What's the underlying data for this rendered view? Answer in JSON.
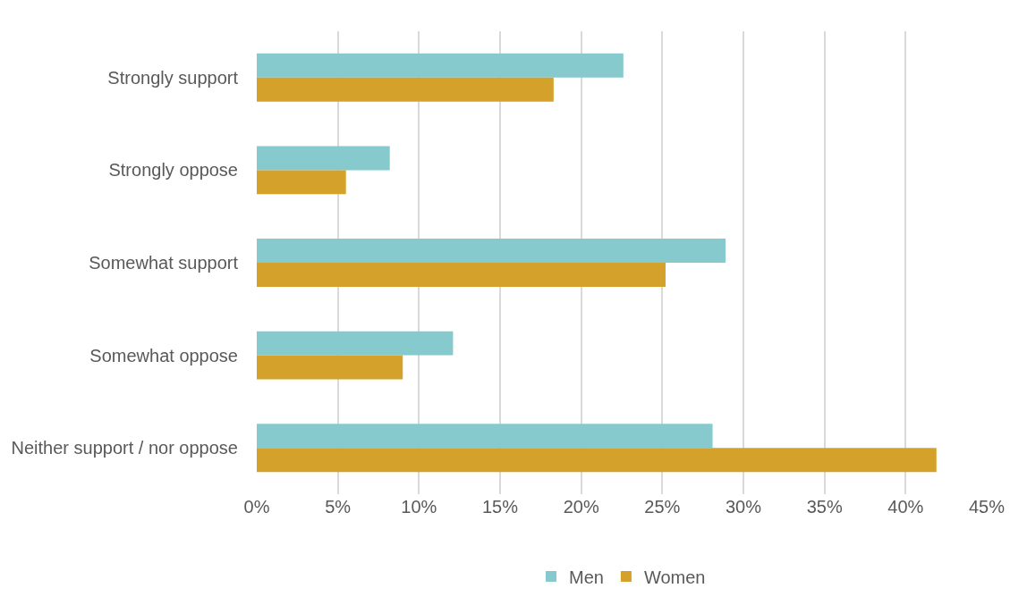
{
  "chart_data": {
    "type": "bar",
    "orientation": "horizontal",
    "categories": [
      "Strongly support",
      "Strongly oppose",
      "Somewhat support",
      "Somewhat oppose",
      "Neither support / nor oppose"
    ],
    "series": [
      {
        "name": "Men",
        "color": "#86cacd",
        "values": [
          22.6,
          8.2,
          28.9,
          12.1,
          28.1
        ]
      },
      {
        "name": "Women",
        "color": "#d4a22b",
        "values": [
          18.3,
          5.5,
          25.2,
          9.0,
          41.9
        ]
      }
    ],
    "xlim": [
      0,
      45
    ],
    "xticks": [
      {
        "value": 0,
        "label": "0%"
      },
      {
        "value": 5,
        "label": "5%"
      },
      {
        "value": 10,
        "label": "10%"
      },
      {
        "value": 15,
        "label": "15%"
      },
      {
        "value": 20,
        "label": "20%"
      },
      {
        "value": 25,
        "label": "25%"
      },
      {
        "value": 30,
        "label": "30%"
      },
      {
        "value": 35,
        "label": "35%"
      },
      {
        "value": 40,
        "label": "40%"
      },
      {
        "value": 45,
        "label": "45%"
      }
    ],
    "grid": "x",
    "legend": "bottom"
  }
}
